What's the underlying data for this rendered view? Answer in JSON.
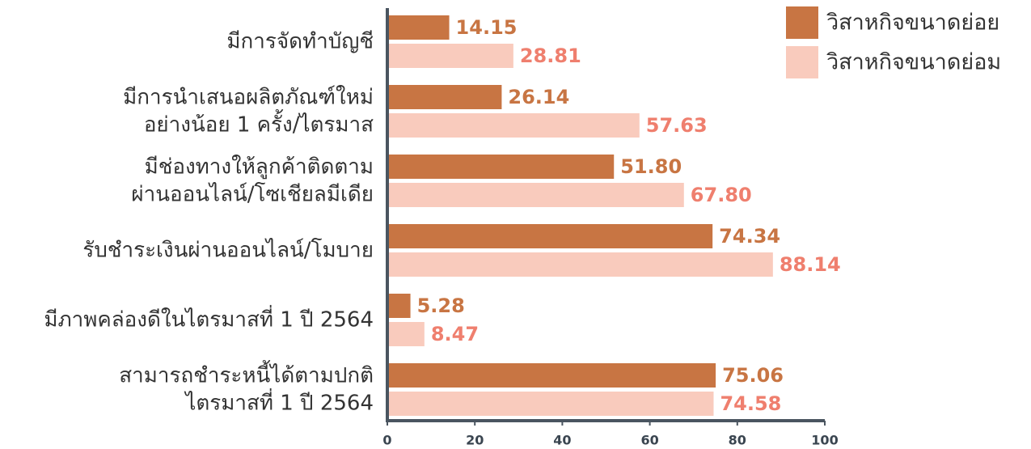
{
  "chart_data": {
    "type": "hbar",
    "categories": [
      "มีการจัดทำบัญชี",
      "มีการนำเสนอผลิตภัณฑ์ใหม่\nอย่างน้อย 1 ครั้ง/ไตรมาส",
      "มีช่องทางให้ลูกค้าติดตาม\nผ่านออนไลน์/โซเชียลมีเดีย",
      "รับชำระเงินผ่านออนไลน์/โมบาย",
      "มีภาพคล่องดีในไตรมาสที่ 1 ปี 2564",
      "สามารถชำระหนี้ได้ตามปกติ\nไตรมาสที่ 1 ปี 2564"
    ],
    "series": [
      {
        "name": "วิสาหกิจขนาดย่อย",
        "color": "#c87543",
        "label_color": "#c87543",
        "values": [
          14.15,
          26.14,
          51.8,
          74.34,
          5.28,
          75.06
        ],
        "value_labels": [
          "14.15",
          "26.14",
          "51.80",
          "74.34",
          "5.28",
          "75.06"
        ]
      },
      {
        "name": "วิสาหกิจขนาดย่อม",
        "color": "#f9cbbd",
        "label_color": "#ef7f6e",
        "values": [
          28.81,
          57.63,
          67.8,
          88.14,
          8.47,
          74.58
        ],
        "value_labels": [
          "28.81",
          "57.63",
          "67.80",
          "88.14",
          "8.47",
          "74.58"
        ]
      }
    ],
    "xlim": [
      0,
      100
    ],
    "xticks": [
      0,
      20,
      40,
      60,
      80,
      100
    ],
    "legend": "upper right"
  }
}
